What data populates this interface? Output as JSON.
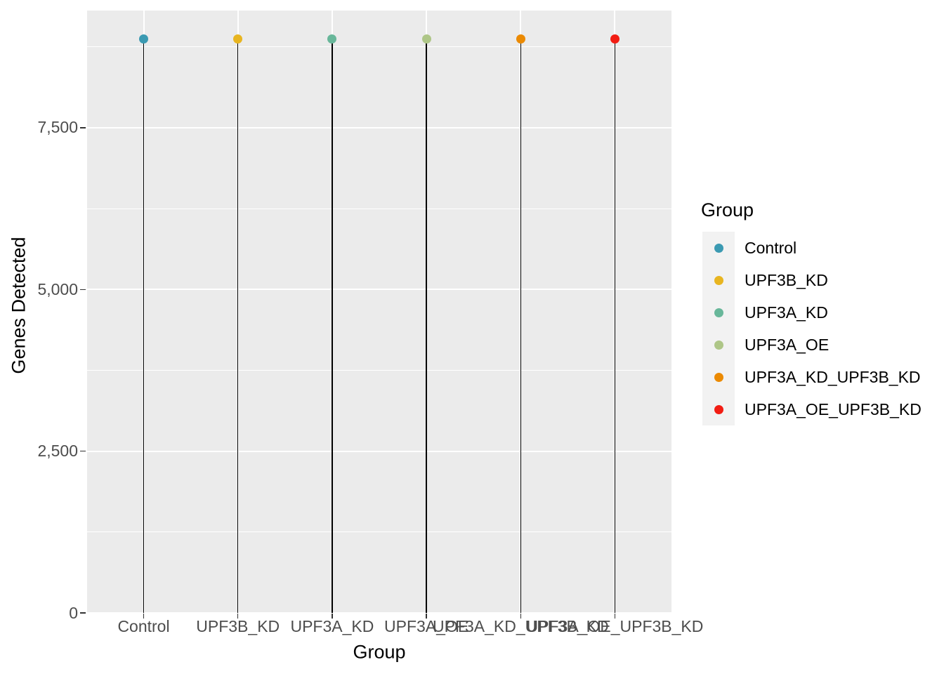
{
  "chart_data": {
    "type": "scatter",
    "style": "lollipop",
    "title": "",
    "xlabel": "Group",
    "ylabel": "Genes Detected",
    "categories": [
      "Control",
      "UPF3B_KD",
      "UPF3A_KD",
      "UPF3A_OE",
      "UPF3A_KD_UPF3B_KD",
      "UPF3A_OE_UPF3B_KD"
    ],
    "values": [
      8870,
      8870,
      8870,
      8870,
      8870,
      8870
    ],
    "point_colors": [
      "#3B9AB2",
      "#E8B520",
      "#68B79A",
      "#AEC687",
      "#EB8A02",
      "#F21D13"
    ],
    "ylim": [
      0,
      9312
    ],
    "yticks": [
      0,
      2500,
      5000,
      7500
    ],
    "ytick_labels": [
      "0",
      "2,500",
      "5,000",
      "7,500"
    ],
    "yminor_ticks": [
      1250,
      3750,
      6250,
      8750
    ],
    "grid": true,
    "legend_position": "right",
    "legend": {
      "title": "Group",
      "entries": [
        {
          "label": "Control",
          "color": "#3B9AB2"
        },
        {
          "label": "UPF3B_KD",
          "color": "#E8B520"
        },
        {
          "label": "UPF3A_KD",
          "color": "#68B79A"
        },
        {
          "label": "UPF3A_OE",
          "color": "#AEC687"
        },
        {
          "label": "UPF3A_KD_UPF3B_KD",
          "color": "#EB8A02"
        },
        {
          "label": "UPF3A_OE_UPF3B_KD",
          "color": "#F21D13"
        }
      ]
    },
    "theme_colors": {
      "panel_bg": "#EBEBEB",
      "grid": "#FFFFFF",
      "tick_text": "#4D4D4D",
      "axis_title_text": "#000000",
      "legend_key_bg": "#F2F2F2",
      "stem": "#000000"
    }
  }
}
